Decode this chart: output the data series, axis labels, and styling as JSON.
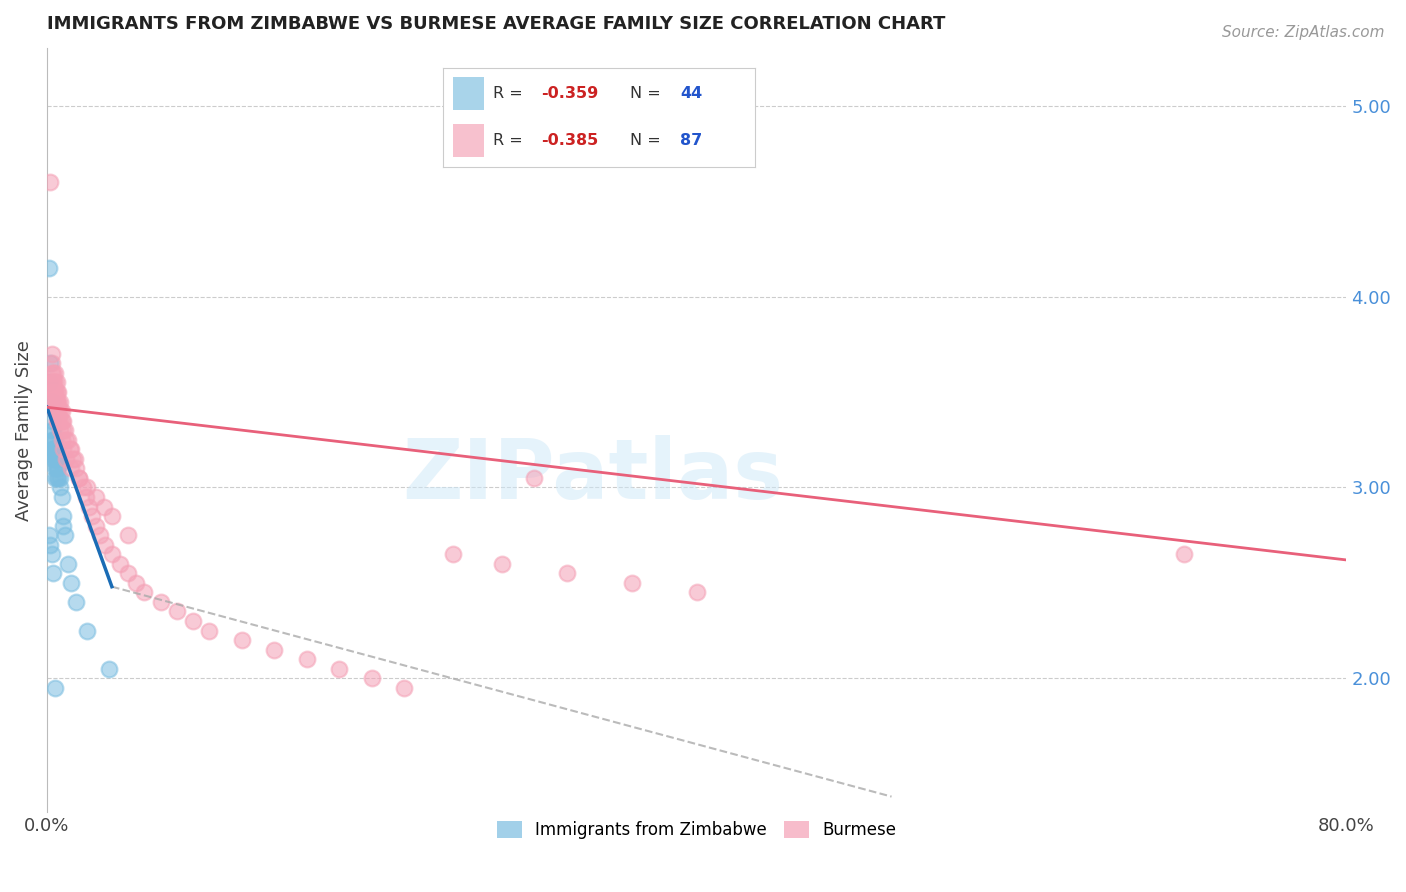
{
  "title": "IMMIGRANTS FROM ZIMBABWE VS BURMESE AVERAGE FAMILY SIZE CORRELATION CHART",
  "source": "Source: ZipAtlas.com",
  "ylabel": "Average Family Size",
  "color_blue": "#7bbde0",
  "color_pink": "#f4a0b5",
  "color_blue_line": "#1a6cb5",
  "color_pink_line": "#e8607a",
  "color_dash": "#aaaaaa",
  "watermark": "ZIPatlas",
  "ylim": [
    1.3,
    5.3
  ],
  "xlim": [
    0.0,
    0.8
  ],
  "yticks_right": [
    2.0,
    3.0,
    4.0,
    5.0
  ],
  "legend_label_bottom1": "Immigrants from Zimbabwe",
  "legend_label_bottom2": "Burmese",
  "zimbabwe_x": [
    0.001,
    0.001,
    0.002,
    0.003,
    0.003,
    0.003,
    0.003,
    0.004,
    0.004,
    0.004,
    0.004,
    0.004,
    0.005,
    0.005,
    0.005,
    0.005,
    0.005,
    0.005,
    0.005,
    0.006,
    0.006,
    0.006,
    0.006,
    0.006,
    0.006,
    0.007,
    0.007,
    0.007,
    0.008,
    0.008,
    0.009,
    0.01,
    0.01,
    0.011,
    0.013,
    0.015,
    0.018,
    0.025,
    0.038,
    0.001,
    0.002,
    0.003,
    0.004,
    0.005
  ],
  "zimbabwe_y": [
    4.15,
    3.55,
    3.65,
    3.45,
    3.35,
    3.3,
    3.25,
    3.3,
    3.25,
    3.2,
    3.2,
    3.15,
    3.25,
    3.2,
    3.2,
    3.15,
    3.15,
    3.1,
    3.05,
    3.2,
    3.15,
    3.15,
    3.1,
    3.1,
    3.05,
    3.15,
    3.1,
    3.05,
    3.05,
    3.0,
    2.95,
    2.85,
    2.8,
    2.75,
    2.6,
    2.5,
    2.4,
    2.25,
    2.05,
    2.75,
    2.7,
    2.65,
    2.55,
    1.95
  ],
  "burmese_x": [
    0.002,
    0.003,
    0.003,
    0.004,
    0.004,
    0.004,
    0.005,
    0.005,
    0.005,
    0.005,
    0.005,
    0.006,
    0.006,
    0.006,
    0.006,
    0.006,
    0.007,
    0.007,
    0.007,
    0.007,
    0.008,
    0.008,
    0.008,
    0.009,
    0.009,
    0.01,
    0.01,
    0.011,
    0.012,
    0.013,
    0.014,
    0.015,
    0.016,
    0.017,
    0.018,
    0.02,
    0.022,
    0.024,
    0.026,
    0.028,
    0.03,
    0.033,
    0.036,
    0.04,
    0.045,
    0.05,
    0.055,
    0.06,
    0.07,
    0.08,
    0.09,
    0.1,
    0.12,
    0.14,
    0.16,
    0.18,
    0.2,
    0.22,
    0.25,
    0.28,
    0.32,
    0.36,
    0.4,
    0.003,
    0.004,
    0.005,
    0.006,
    0.007,
    0.008,
    0.009,
    0.01,
    0.012,
    0.015,
    0.02,
    0.025,
    0.03,
    0.035,
    0.04,
    0.05,
    0.003,
    0.004,
    0.005,
    0.006,
    0.3,
    0.003,
    0.7
  ],
  "burmese_y": [
    4.6,
    3.7,
    3.65,
    3.6,
    3.55,
    3.5,
    3.6,
    3.55,
    3.5,
    3.45,
    3.4,
    3.55,
    3.5,
    3.45,
    3.4,
    3.35,
    3.5,
    3.45,
    3.4,
    3.35,
    3.45,
    3.4,
    3.35,
    3.4,
    3.35,
    3.35,
    3.3,
    3.3,
    3.25,
    3.25,
    3.2,
    3.2,
    3.15,
    3.15,
    3.1,
    3.05,
    3.0,
    2.95,
    2.9,
    2.85,
    2.8,
    2.75,
    2.7,
    2.65,
    2.6,
    2.55,
    2.5,
    2.45,
    2.4,
    2.35,
    2.3,
    2.25,
    2.2,
    2.15,
    2.1,
    2.05,
    2.0,
    1.95,
    2.65,
    2.6,
    2.55,
    2.5,
    2.45,
    3.55,
    3.5,
    3.45,
    3.4,
    3.35,
    3.3,
    3.25,
    3.2,
    3.15,
    3.1,
    3.05,
    3.0,
    2.95,
    2.9,
    2.85,
    2.75,
    3.6,
    3.55,
    3.5,
    3.45,
    3.05,
    3.5,
    2.65
  ],
  "blue_line_x0": 0.0,
  "blue_line_y0": 3.42,
  "blue_line_x1": 0.04,
  "blue_line_y1": 2.48,
  "dash_line_x0": 0.04,
  "dash_line_y0": 2.48,
  "dash_line_x1": 0.52,
  "dash_line_y1": 1.38,
  "pink_line_x0": 0.0,
  "pink_line_y0": 3.42,
  "pink_line_x1": 0.8,
  "pink_line_y1": 2.62
}
